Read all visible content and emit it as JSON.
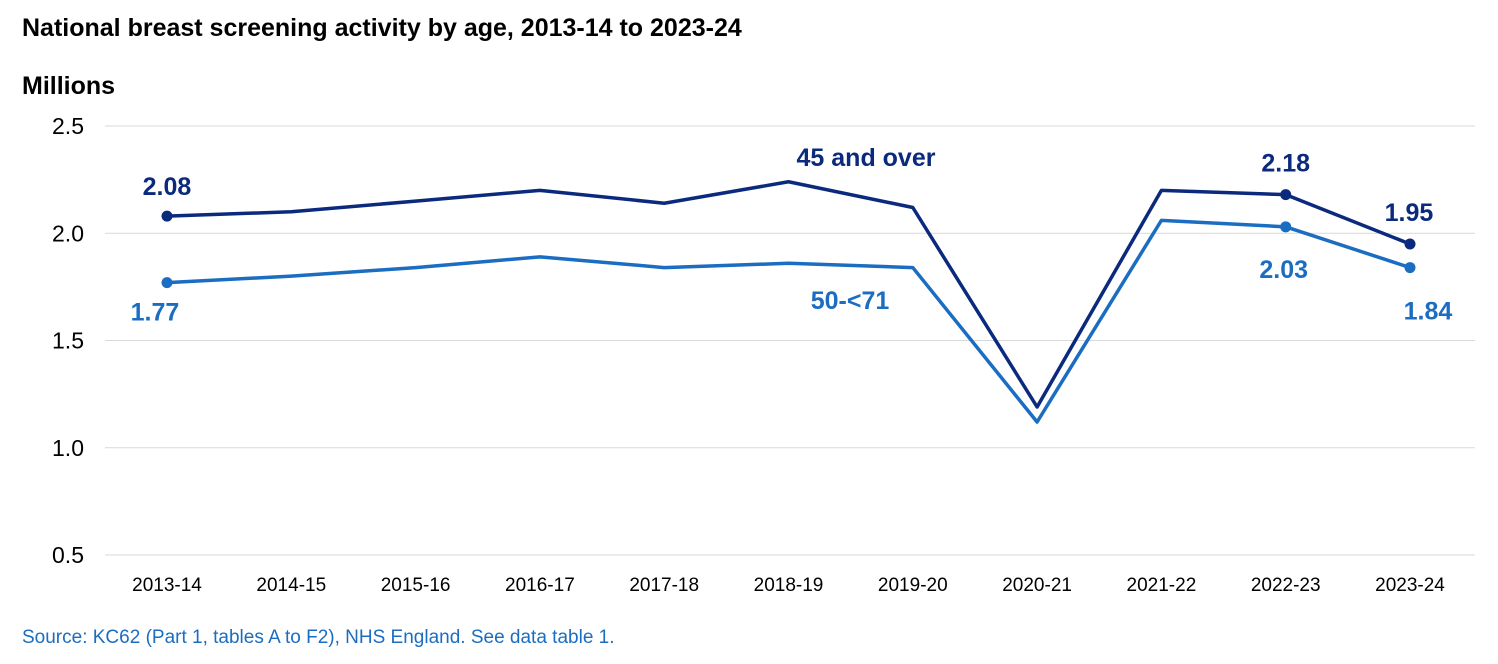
{
  "title": "National breast screening activity by age, 2013-14 to 2023-24",
  "source": "Source: KC62 (Part 1, tables A to F2), NHS England. See data table 1.",
  "colors": {
    "series_45_over": "#0b2a7e",
    "series_50_71": "#1b6dc1",
    "source_text": "#1b6dc1",
    "grid": "#d9d9d9"
  },
  "chart_data": {
    "type": "line",
    "title": "National breast screening activity by age, 2013-14 to 2023-24",
    "ylabel": "Millions",
    "ylim": [
      0.5,
      2.5
    ],
    "yticks": [
      "0.5",
      "1.0",
      "1.5",
      "2.0",
      "2.5"
    ],
    "grid": true,
    "categories": [
      "2013-14",
      "2014-15",
      "2015-16",
      "2016-17",
      "2017-18",
      "2018-19",
      "2019-20",
      "2020-21",
      "2021-22",
      "2022-23",
      "2023-24"
    ],
    "series": [
      {
        "name": "45 and over",
        "values": [
          2.08,
          2.1,
          2.15,
          2.2,
          2.14,
          2.24,
          2.12,
          1.19,
          2.2,
          2.18,
          1.95
        ],
        "labels": [
          {
            "index": 0,
            "text": "2.08"
          },
          {
            "index": 9,
            "text": "2.18"
          },
          {
            "index": 10,
            "text": "1.95"
          }
        ]
      },
      {
        "name": "50-<71",
        "values": [
          1.77,
          1.8,
          1.84,
          1.89,
          1.84,
          1.86,
          1.84,
          1.12,
          2.06,
          2.03,
          1.84
        ],
        "labels": [
          {
            "index": 0,
            "text": "1.77"
          },
          {
            "index": 9,
            "text": "2.03"
          },
          {
            "index": 10,
            "text": "1.84"
          }
        ]
      }
    ]
  }
}
